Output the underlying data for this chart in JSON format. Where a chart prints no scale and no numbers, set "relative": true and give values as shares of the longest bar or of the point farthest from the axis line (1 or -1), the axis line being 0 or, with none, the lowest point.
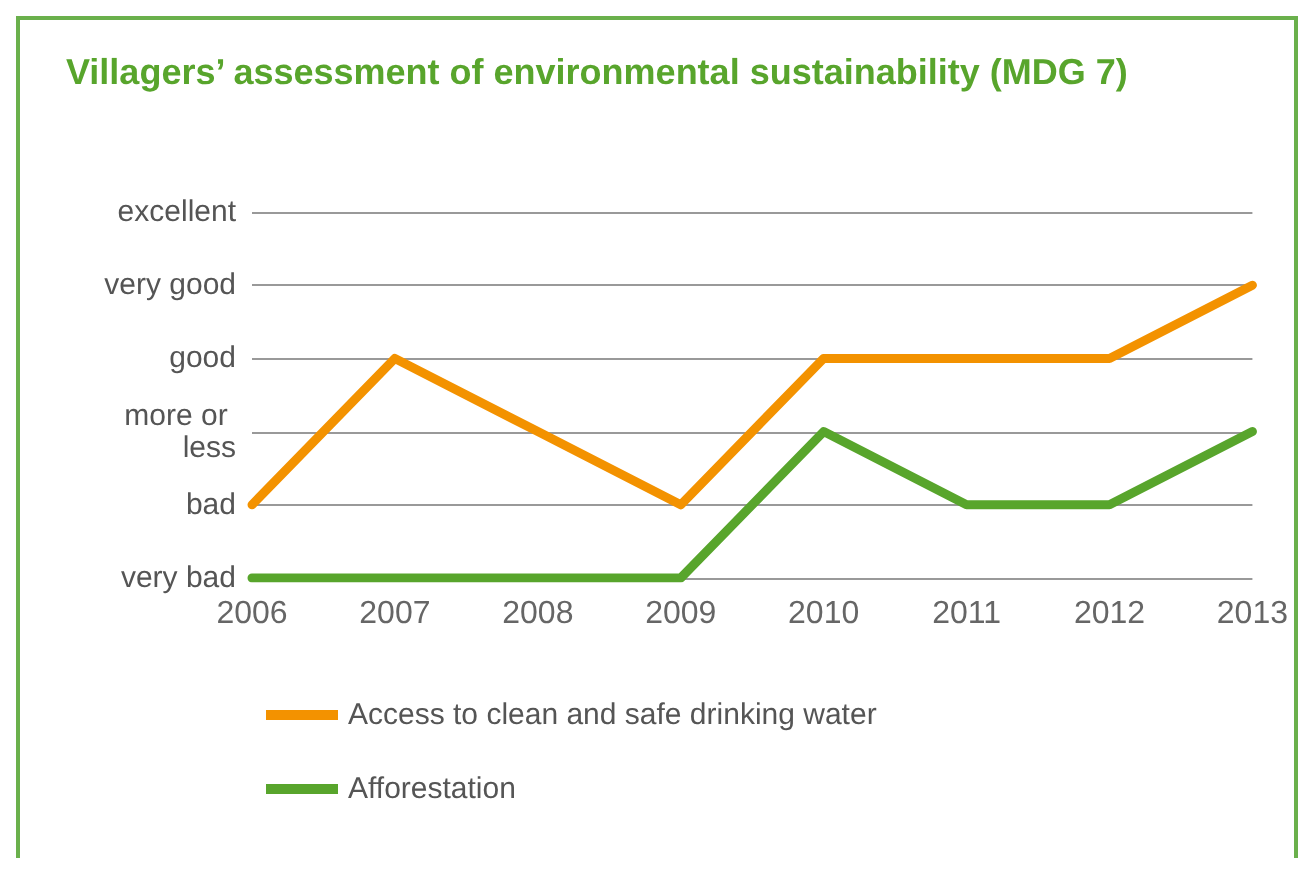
{
  "chart_data": {
    "type": "line",
    "title": "Villagers’ assessment of environmental sustainability (MDG 7)",
    "categories": [
      "2006",
      "2007",
      "2008",
      "2009",
      "2010",
      "2011",
      "2012",
      "2013"
    ],
    "relative": true,
    "annotations": [
      "very bad",
      "bad",
      "more or less",
      "good",
      "very good",
      "excellent"
    ],
    "series": [
      {
        "name": "Access to clean and safe drinking water",
        "color": "#f39200",
        "values": [
          0.25,
          0.75,
          0.5,
          0.25,
          0.75,
          0.75,
          0.75,
          1
        ]
      },
      {
        "name": "Afforestation",
        "color": "#58a52c",
        "values": [
          0,
          0,
          0,
          0,
          0.5,
          0.25,
          0.25,
          0.5
        ]
      }
    ],
    "grid": "y",
    "legend": "bottom",
    "marker": "none",
    "line_style": "solid"
  }
}
